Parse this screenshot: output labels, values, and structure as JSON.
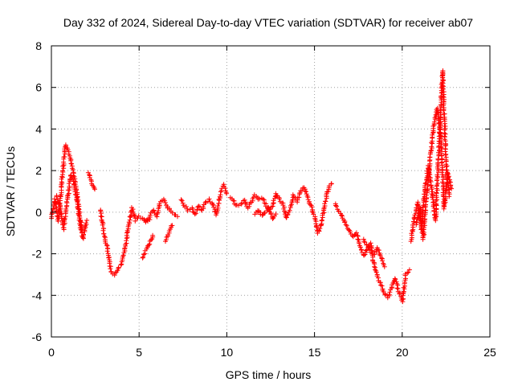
{
  "chart_data": {
    "type": "scatter",
    "title": "Day 332 of 2024, Sidereal Day-to-day VTEC variation (SDTVAR) for receiver ab07",
    "xlabel": "GPS time / hours",
    "ylabel": "SDTVAR / TECUs",
    "xlim": [
      0,
      25
    ],
    "ylim": [
      -6,
      8
    ],
    "x_ticks": [
      0,
      5,
      10,
      15,
      20,
      25
    ],
    "y_ticks": [
      -6,
      -4,
      -2,
      0,
      2,
      4,
      6,
      8
    ],
    "grid": true,
    "marker": "+",
    "colors": {
      "series": "#ff0000",
      "axis": "#000000",
      "grid": "#a0a0a0"
    },
    "series": [
      {
        "name": "SDTVAR",
        "segments": [
          {
            "x": [
              0.0,
              0.2,
              0.4,
              0.6,
              0.8,
              1.0,
              1.2,
              1.4,
              1.6,
              1.8,
              2.0
            ],
            "y": [
              -0.3,
              0.6,
              -0.4,
              1.5,
              3.2,
              2.9,
              2.2,
              1.2,
              0.0,
              -1.3,
              -0.4
            ]
          },
          {
            "x": [
              0.3,
              0.5,
              0.7,
              0.9,
              1.1,
              1.3,
              1.5,
              1.7
            ],
            "y": [
              0.8,
              0.2,
              -0.8,
              0.5,
              1.8,
              1.4,
              0.3,
              -0.9
            ]
          },
          {
            "x": [
              2.1,
              2.3,
              2.5
            ],
            "y": [
              1.9,
              1.4,
              1.1
            ]
          },
          {
            "x": [
              2.8,
              3.0,
              3.2,
              3.4,
              3.6,
              3.8,
              4.0,
              4.2,
              4.4,
              4.6,
              4.8,
              5.0,
              5.2,
              5.4,
              5.6
            ],
            "y": [
              0.1,
              -1.0,
              -1.8,
              -2.9,
              -3.0,
              -2.7,
              -2.5,
              -1.8,
              -0.6,
              0.2,
              -0.4,
              -0.2,
              -0.3,
              -0.5,
              -0.4
            ]
          },
          {
            "x": [
              5.2,
              5.4,
              5.6,
              5.8
            ],
            "y": [
              -2.2,
              -1.8,
              -1.5,
              -1.1
            ]
          },
          {
            "x": [
              5.4,
              5.6,
              5.8,
              6.0,
              6.2,
              6.4,
              6.6,
              6.8,
              7.0,
              7.2
            ],
            "y": [
              -0.4,
              -0.2,
              0.1,
              -0.2,
              0.5,
              0.6,
              0.3,
              0.0,
              -0.1,
              -0.2
            ]
          },
          {
            "x": [
              6.5,
              6.7,
              6.9
            ],
            "y": [
              -1.4,
              -1.0,
              -0.6
            ]
          },
          {
            "x": [
              7.4,
              7.6,
              7.8,
              8.0,
              8.2,
              8.4,
              8.6,
              8.8,
              9.0,
              9.2,
              9.4,
              9.6,
              9.8,
              10.0
            ],
            "y": [
              0.6,
              0.3,
              0.1,
              0.2,
              -0.1,
              0.3,
              0.1,
              0.5,
              0.6,
              0.4,
              -0.1,
              0.7,
              1.3,
              0.9
            ]
          },
          {
            "x": [
              10.2,
              10.4,
              10.6,
              10.8,
              11.0,
              11.2,
              11.4,
              11.6,
              11.8,
              12.0,
              12.2,
              12.4,
              12.6,
              12.8,
              13.0,
              13.2,
              13.4,
              13.6,
              13.8,
              14.0,
              14.2,
              14.4,
              14.6,
              14.8,
              15.0,
              15.2,
              15.4,
              15.6,
              15.8,
              16.0
            ],
            "y": [
              0.7,
              0.5,
              0.3,
              0.4,
              0.6,
              0.2,
              0.5,
              0.8,
              0.6,
              0.7,
              0.4,
              0.1,
              0.3,
              0.9,
              0.6,
              0.4,
              -0.3,
              0.2,
              0.8,
              0.5,
              1.0,
              1.2,
              0.7,
              0.3,
              -0.2,
              -1.0,
              -0.6,
              0.4,
              1.2,
              1.4
            ]
          },
          {
            "x": [
              11.6,
              11.8,
              12.0,
              12.2,
              12.4,
              12.6,
              12.8
            ],
            "y": [
              -0.1,
              0.1,
              -0.2,
              0.0,
              0.2,
              -0.3,
              -0.1
            ]
          },
          {
            "x": [
              16.2,
              16.4,
              16.6,
              16.8,
              17.0,
              17.2,
              17.4,
              17.6,
              17.8,
              18.0,
              18.2,
              18.4,
              18.6,
              18.8,
              19.0,
              19.2,
              19.4,
              19.6,
              19.8,
              20.0,
              20.2,
              20.4
            ],
            "y": [
              0.4,
              0.0,
              -0.3,
              -0.6,
              -0.9,
              -1.2,
              -1.0,
              -1.6,
              -2.1,
              -1.8,
              -1.5,
              -2.6,
              -3.1,
              -3.5,
              -3.9,
              -4.1,
              -3.6,
              -3.2,
              -3.8,
              -4.3,
              -3.0,
              -2.8
            ]
          },
          {
            "x": [
              17.8,
              18.0,
              18.2,
              18.4,
              18.6,
              18.8,
              19.0
            ],
            "y": [
              -1.3,
              -1.6,
              -1.9,
              -2.0,
              -1.7,
              -2.2,
              -2.6
            ]
          },
          {
            "x": [
              20.5,
              20.7,
              20.9,
              21.1,
              21.3,
              21.5,
              21.7,
              21.9,
              22.1,
              22.3,
              22.5,
              22.7
            ],
            "y": [
              -1.4,
              -0.2,
              0.5,
              -0.8,
              1.2,
              2.2,
              1.0,
              -0.4,
              3.1,
              6.8,
              2.4,
              0.8
            ]
          },
          {
            "x": [
              20.8,
              21.0,
              21.2,
              21.4,
              21.6,
              21.8,
              22.0,
              22.2,
              22.4,
              22.6,
              22.8
            ],
            "y": [
              -0.6,
              0.2,
              -1.3,
              0.9,
              2.6,
              4.2,
              5.0,
              3.7,
              0.2,
              1.9,
              1.1
            ]
          }
        ]
      }
    ]
  }
}
